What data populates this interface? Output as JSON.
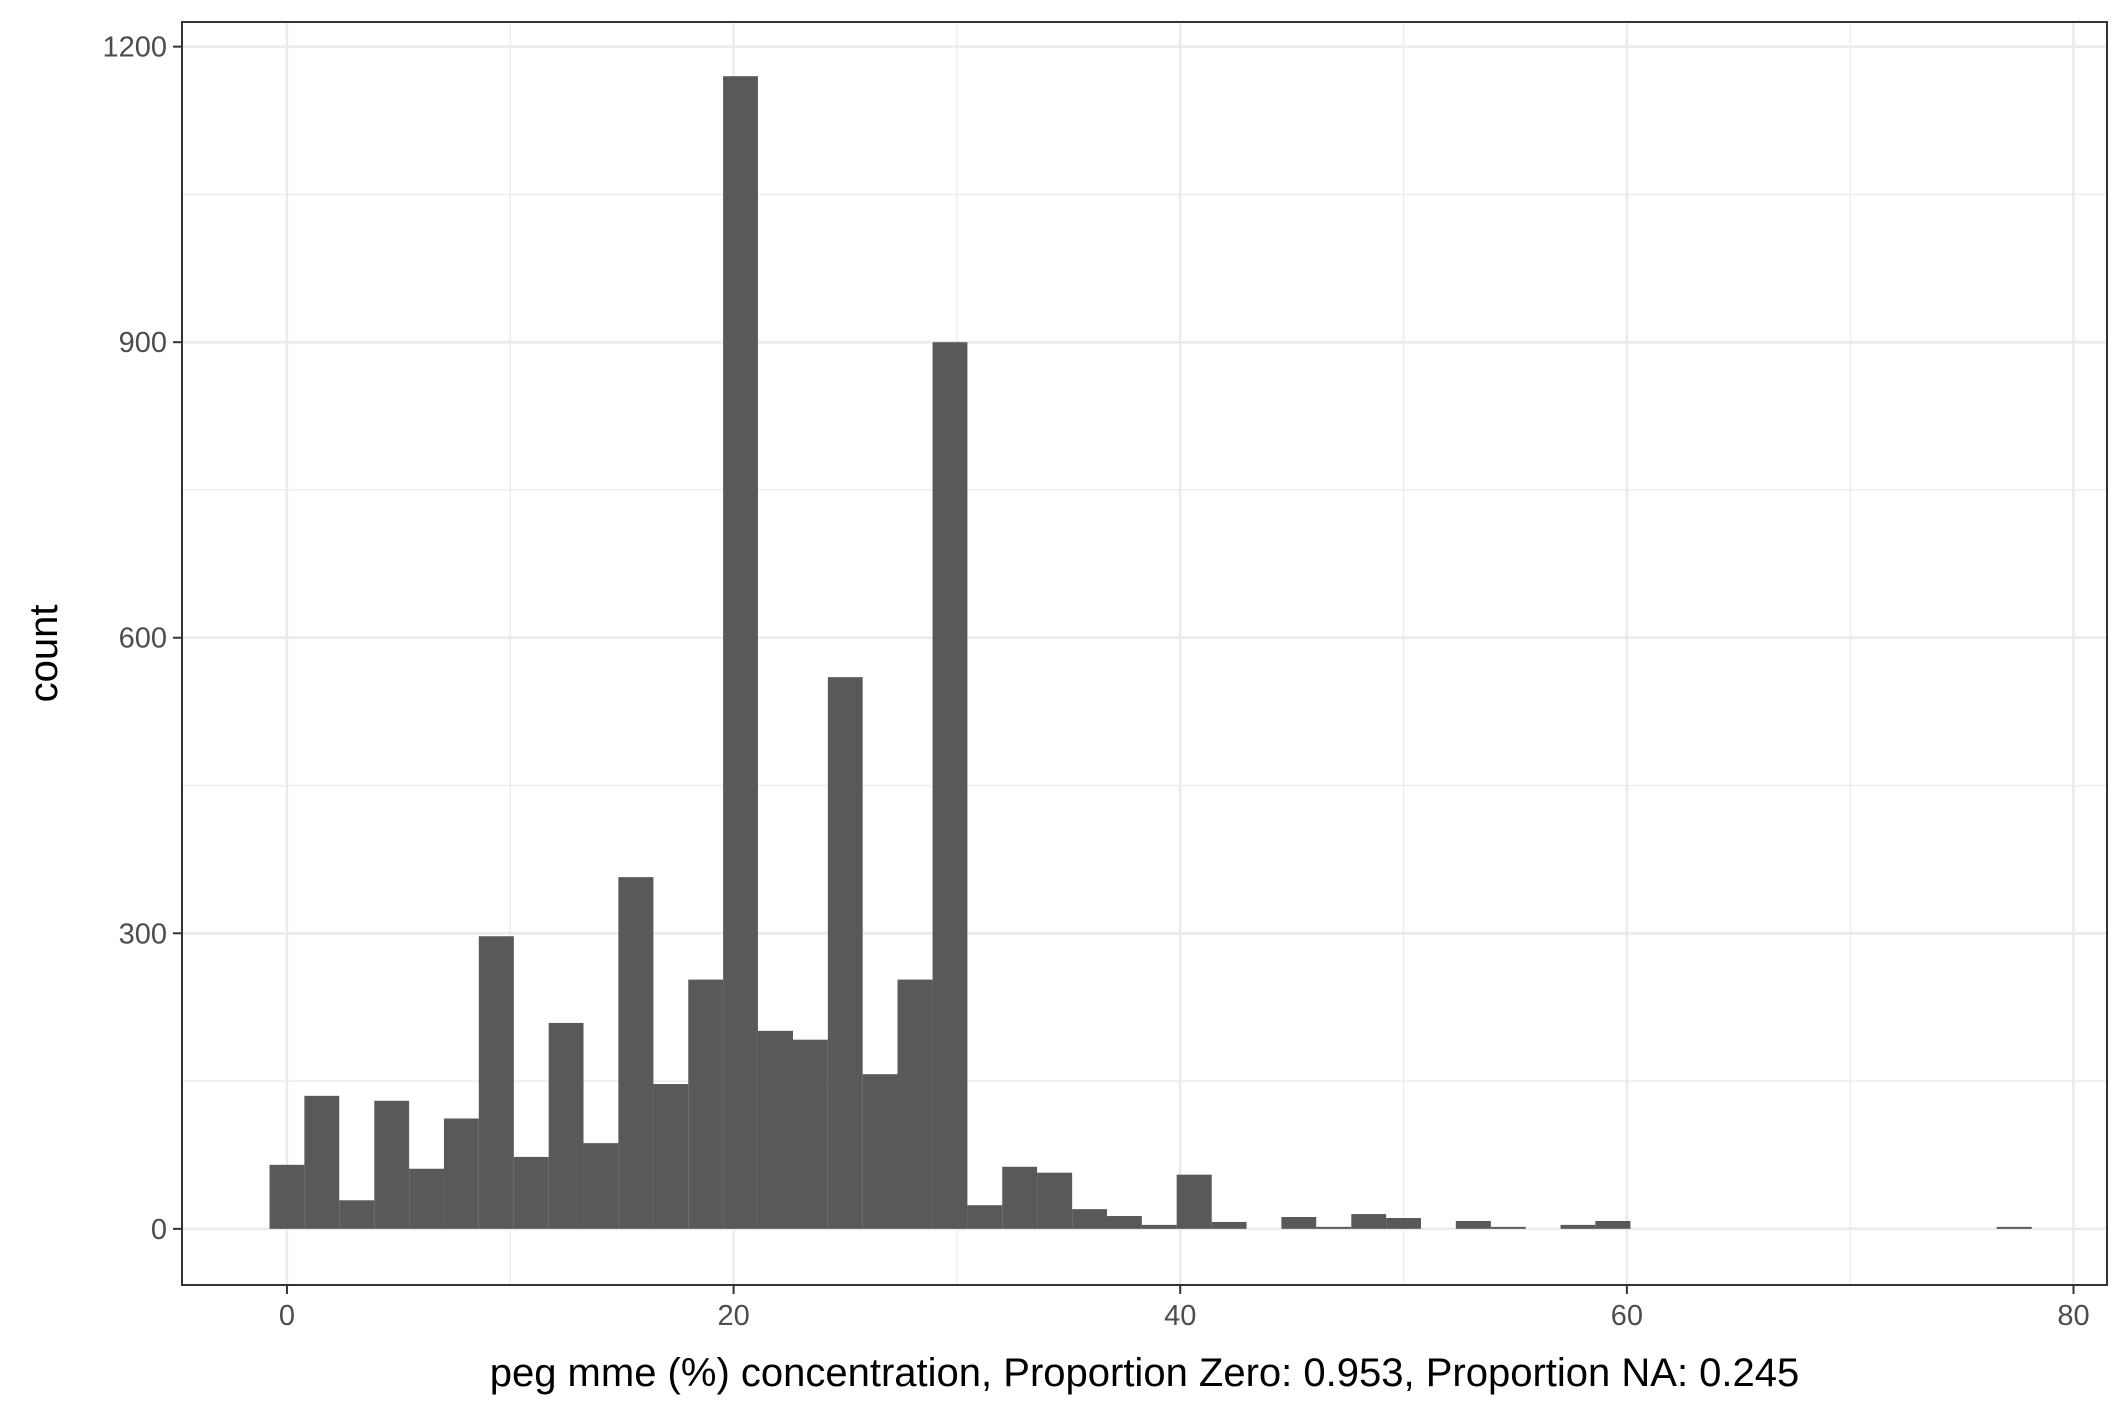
{
  "chart_data": {
    "type": "bar",
    "xlabel": "peg mme (%) concentration, Proportion Zero: 0.953, Proportion NA: 0.245",
    "ylabel": "count",
    "xlim": [
      -4.7,
      81.5
    ],
    "ylim": [
      -57,
      1225
    ],
    "x_ticks": [
      0,
      20,
      40,
      60,
      80
    ],
    "y_ticks": [
      0,
      300,
      600,
      900,
      1200
    ],
    "bin_width": 1.5625,
    "bins": [
      {
        "x0": -0.78,
        "x1": 0.78,
        "count": 65
      },
      {
        "x0": 0.78,
        "x1": 2.34,
        "count": 135
      },
      {
        "x0": 2.34,
        "x1": 3.91,
        "count": 29
      },
      {
        "x0": 3.91,
        "x1": 5.47,
        "count": 130
      },
      {
        "x0": 5.47,
        "x1": 7.03,
        "count": 61
      },
      {
        "x0": 7.03,
        "x1": 8.59,
        "count": 112
      },
      {
        "x0": 8.59,
        "x1": 10.16,
        "count": 297
      },
      {
        "x0": 10.16,
        "x1": 11.72,
        "count": 73
      },
      {
        "x0": 11.72,
        "x1": 13.28,
        "count": 209
      },
      {
        "x0": 13.28,
        "x1": 14.84,
        "count": 87
      },
      {
        "x0": 14.84,
        "x1": 16.41,
        "count": 357
      },
      {
        "x0": 16.41,
        "x1": 17.97,
        "count": 147
      },
      {
        "x0": 17.97,
        "x1": 19.53,
        "count": 253
      },
      {
        "x0": 19.53,
        "x1": 21.09,
        "count": 1170
      },
      {
        "x0": 21.09,
        "x1": 22.66,
        "count": 201
      },
      {
        "x0": 22.66,
        "x1": 24.22,
        "count": 192
      },
      {
        "x0": 24.22,
        "x1": 25.78,
        "count": 560
      },
      {
        "x0": 25.78,
        "x1": 27.34,
        "count": 157
      },
      {
        "x0": 27.34,
        "x1": 28.91,
        "count": 253
      },
      {
        "x0": 28.91,
        "x1": 30.47,
        "count": 900
      },
      {
        "x0": 30.47,
        "x1": 32.03,
        "count": 24
      },
      {
        "x0": 32.03,
        "x1": 33.59,
        "count": 63
      },
      {
        "x0": 33.59,
        "x1": 35.16,
        "count": 57
      },
      {
        "x0": 35.16,
        "x1": 36.72,
        "count": 20
      },
      {
        "x0": 36.72,
        "x1": 38.28,
        "count": 13
      },
      {
        "x0": 38.28,
        "x1": 39.84,
        "count": 4
      },
      {
        "x0": 39.84,
        "x1": 41.41,
        "count": 55
      },
      {
        "x0": 41.41,
        "x1": 42.97,
        "count": 7
      },
      {
        "x0": 44.53,
        "x1": 46.09,
        "count": 12
      },
      {
        "x0": 46.09,
        "x1": 47.66,
        "count": 2
      },
      {
        "x0": 47.66,
        "x1": 49.22,
        "count": 15
      },
      {
        "x0": 49.22,
        "x1": 50.78,
        "count": 11
      },
      {
        "x0": 52.34,
        "x1": 53.91,
        "count": 8
      },
      {
        "x0": 53.91,
        "x1": 55.47,
        "count": 2
      },
      {
        "x0": 57.03,
        "x1": 58.59,
        "count": 4
      },
      {
        "x0": 58.59,
        "x1": 60.16,
        "count": 8
      },
      {
        "x0": 76.56,
        "x1": 78.13,
        "count": 2
      }
    ],
    "bar_color": "#595959",
    "grid": true,
    "theme": "bw"
  }
}
